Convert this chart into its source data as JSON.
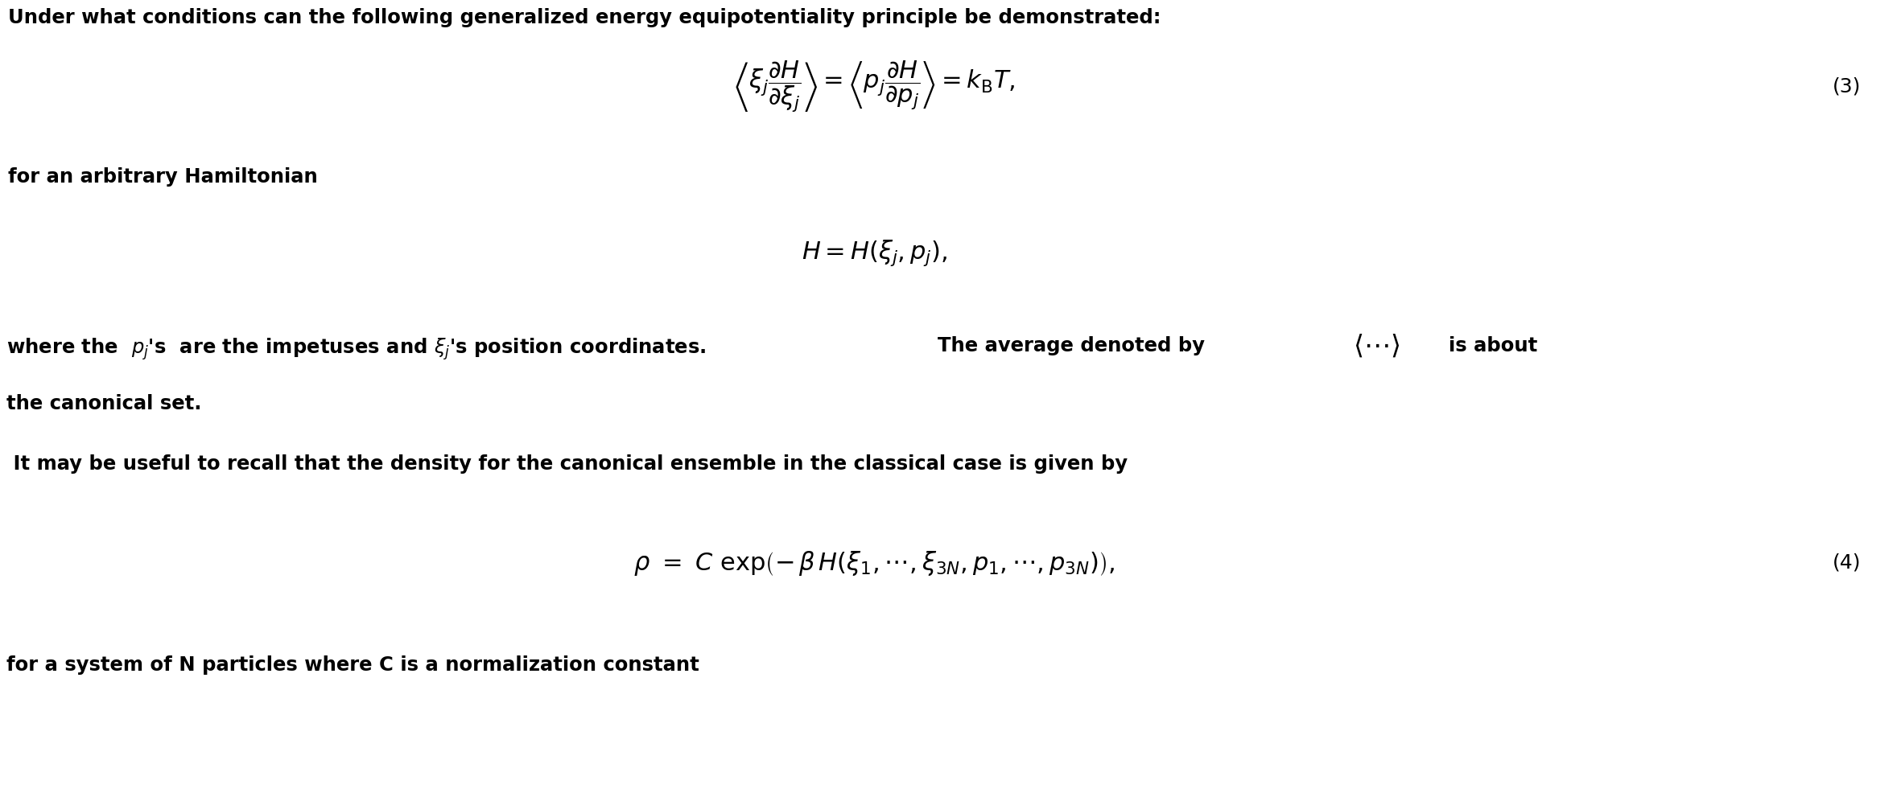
{
  "title_text": "Under what conditions can the following generalized energy equipotentiality principle be demonstrated:",
  "eq3_number": "(3)",
  "text_hamiltonian": "for an arbitrary Hamiltonian",
  "text_average": "The average denoted by",
  "text_isabout": "is about",
  "text_canonical": "the canonical set.",
  "text_recall": " It may be useful to recall that the density for the canonical ensemble in the classical case is given by",
  "eq4_number": "(4)",
  "text_system": "for a system of N particles where C is a normalization constant",
  "bg_color": "#ffffff",
  "text_color": "#000000",
  "figwidth": 23.62,
  "figheight": 9.96,
  "dpi": 100
}
